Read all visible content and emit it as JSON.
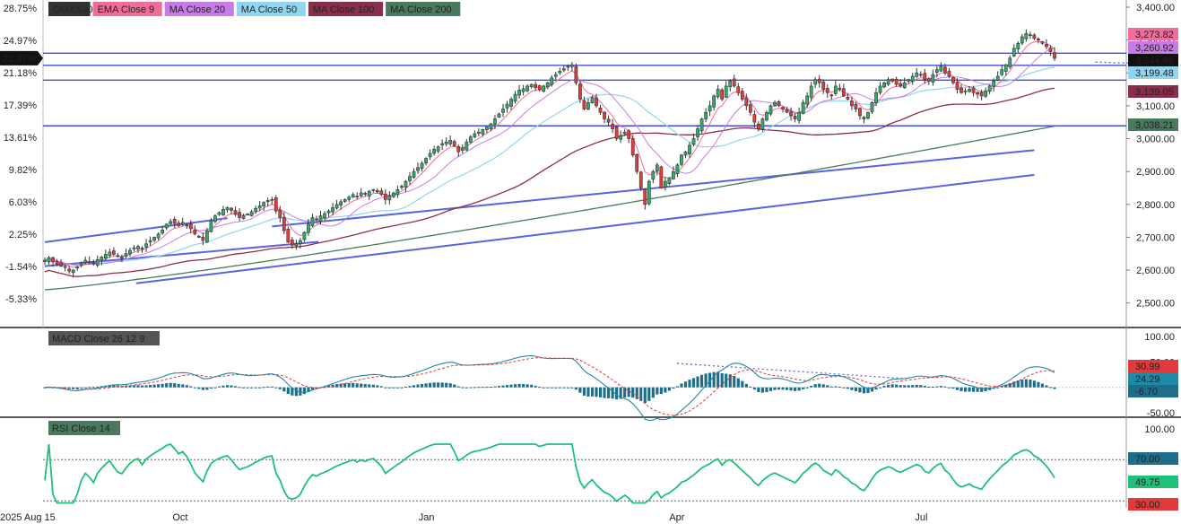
{
  "chart_data": {
    "type": "candlestick",
    "panels": {
      "price": {
        "symbol": "OMXS30",
        "y_range": [
          2450,
          3400
        ],
        "right_ticks": [
          "3,400.00",
          "3,300.00",
          "3,200.00",
          "3,100.00",
          "3,000.00",
          "2,900.00",
          "2,800.00",
          "2,700.00",
          "2,600.00",
          "2,500.00"
        ],
        "right_tick_values": [
          3400,
          3300,
          3200,
          3100,
          3000,
          2900,
          2800,
          2700,
          2600,
          2500
        ],
        "left_ticks": [
          "28.75%",
          "24.97%",
          "21.18%",
          "17.39%",
          "13.61%",
          "9.82%",
          "6.03%",
          "2.25%",
          "-1.54%",
          "-5.33%"
        ],
        "current_pct": "22.87%",
        "legend": [
          {
            "label": "OMXS30",
            "color": "#333333"
          },
          {
            "label": "EMA Close 9",
            "color": "#f06c9b"
          },
          {
            "label": "MA Close 20",
            "color": "#c77be6"
          },
          {
            "label": "MA Close 50",
            "color": "#8fd6f0"
          },
          {
            "label": "MA Close 100",
            "color": "#8b2e4e"
          },
          {
            "label": "MA Close 200",
            "color": "#4a7a5e"
          }
        ],
        "value_labels": [
          {
            "text": "3,273.82",
            "value": 3273.82,
            "color": "#f06c9b"
          },
          {
            "text": "3,260.92",
            "value": 3260.92,
            "color": "#c77be6"
          },
          {
            "text": "3,244.66",
            "value": 3244.66,
            "color": "#111111"
          },
          {
            "text": "3,199.48",
            "value": 3199.48,
            "color": "#8fd6f0"
          },
          {
            "text": "3,139.05",
            "value": 3139.05,
            "color": "#8b2e4e"
          },
          {
            "text": "3,038.21",
            "value": 3038.21,
            "color": "#4a7a5e"
          }
        ],
        "horizontal_lines": [
          3260,
          3223,
          3178,
          3039
        ],
        "trend_lines": [
          {
            "x1": 0,
            "y1": 2685,
            "x2": 90,
            "y2": 2758
          },
          {
            "x1": 112,
            "y1": 2733,
            "x2": 488,
            "y2": 2965
          },
          {
            "x1": 45,
            "y1": 2560,
            "x2": 488,
            "y2": 2890
          },
          {
            "x1": 0,
            "y1": 2612,
            "x2": 135,
            "y2": 2686
          }
        ],
        "dotted_trend": {
          "x1": 570,
          "y1": 3233,
          "x2": 920,
          "y2": 3170
        },
        "close": [
          2630,
          2638,
          2625,
          2618,
          2612,
          2608,
          2597,
          2600,
          2610,
          2622,
          2630,
          2626,
          2620,
          2632,
          2640,
          2648,
          2655,
          2648,
          2642,
          2640,
          2650,
          2660,
          2668,
          2672,
          2665,
          2680,
          2690,
          2700,
          2710,
          2722,
          2740,
          2748,
          2742,
          2735,
          2745,
          2738,
          2726,
          2710,
          2700,
          2690,
          2720,
          2750,
          2765,
          2775,
          2785,
          2790,
          2782,
          2770,
          2760,
          2765,
          2770,
          2778,
          2788,
          2796,
          2806,
          2812,
          2815,
          2780,
          2760,
          2720,
          2685,
          2676,
          2680,
          2690,
          2715,
          2740,
          2760,
          2755,
          2765,
          2772,
          2780,
          2790,
          2800,
          2808,
          2815,
          2822,
          2830,
          2825,
          2835,
          2832,
          2840,
          2845,
          2838,
          2830,
          2815,
          2825,
          2835,
          2845,
          2855,
          2870,
          2885,
          2900,
          2912,
          2925,
          2940,
          2955,
          2968,
          2975,
          2985,
          2990,
          2995,
          2978,
          2960,
          2972,
          2990,
          3005,
          3015,
          3020,
          3028,
          3035,
          3045,
          3060,
          3075,
          3090,
          3105,
          3120,
          3135,
          3148,
          3152,
          3160,
          3165,
          3155,
          3150,
          3160,
          3170,
          3185,
          3195,
          3205,
          3213,
          3220,
          3225,
          3170,
          3120,
          3090,
          3110,
          3125,
          3100,
          3080,
          3060,
          3050,
          3030,
          3000,
          3010,
          3020,
          3000,
          2950,
          2900,
          2850,
          2800,
          2870,
          2900,
          2920,
          2850,
          2870,
          2880,
          2900,
          2920,
          2950,
          2960,
          2980,
          3000,
          3030,
          3060,
          3080,
          3100,
          3130,
          3150,
          3120,
          3160,
          3175,
          3160,
          3140,
          3120,
          3100,
          3080,
          3050,
          3030,
          3060,
          3080,
          3100,
          3110,
          3100,
          3090,
          3080,
          3070,
          3060,
          3080,
          3110,
          3130,
          3160,
          3180,
          3170,
          3150,
          3140,
          3130,
          3160,
          3150,
          3130,
          3120,
          3100,
          3090,
          3070,
          3060,
          3080,
          3110,
          3140,
          3160,
          3170,
          3180,
          3175,
          3165,
          3160,
          3170,
          3180,
          3190,
          3200,
          3195,
          3180,
          3175,
          3195,
          3210,
          3220,
          3200,
          3190,
          3170,
          3150,
          3140,
          3145,
          3150,
          3140,
          3135,
          3130,
          3145,
          3160,
          3175,
          3190,
          3210,
          3225,
          3245,
          3275,
          3290,
          3310,
          3320,
          3315,
          3305,
          3300,
          3290,
          3280,
          3265,
          3244.66
        ]
      },
      "macd": {
        "label": "MACD Close 26 12 9",
        "y_range": [
          -55,
          105
        ],
        "right_ticks": [
          "100.00",
          "50.00",
          "-50.00"
        ],
        "right_tick_values": [
          100,
          50,
          -50
        ],
        "value_labels": [
          {
            "text": "30.99",
            "value": 30.99,
            "color": "#e03a3a"
          },
          {
            "text": "24.29",
            "value": 24.29,
            "color": "#1e8aa8"
          },
          {
            "text": "-6.70",
            "value": -6.7,
            "color": "#1e6e8a"
          }
        ]
      },
      "rsi": {
        "label": "RSI Close 14",
        "y_range": [
          25,
          105
        ],
        "right_ticks": [
          "100.00",
          "70.00",
          "30.00"
        ],
        "right_tick_values": [
          100,
          70,
          30
        ],
        "value_labels": [
          {
            "text": "70.00",
            "value": 70,
            "color": "#1e6e8a"
          },
          {
            "text": "49.75",
            "value": 49.75,
            "color": "#1ec07a"
          },
          {
            "text": "30.00",
            "value": 30,
            "color": "#e03a3a"
          }
        ]
      }
    },
    "x_labels": [
      {
        "text": "2025 Aug 15",
        "pos": 0.0
      },
      {
        "text": "Oct",
        "pos": 0.134
      },
      {
        "text": "Jan",
        "pos": 0.378
      },
      {
        "text": "Apr",
        "pos": 0.626
      },
      {
        "text": "Jul",
        "pos": 0.868
      }
    ]
  }
}
